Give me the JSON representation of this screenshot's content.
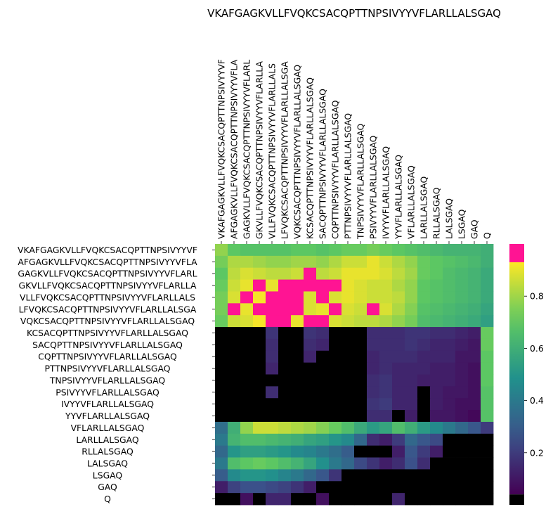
{
  "chart_data": {
    "type": "heatmap",
    "title": "VKAFGAGKVLLFVQKCSACQPTTNPSIVYYVFLARLLALSGAQ",
    "xlabel": "",
    "ylabel": "",
    "x_tick_labels": [
      "VKAFGAGKVLLFVQKCSACQPTTNPSIVYYVF",
      "AFGAGKVLLFVQKCSACQPTTNPSIVYYVFLA",
      "GAGKVLLFVQKCSACQPTTNPSIVYYVFLARL",
      "GKVLLFVQKCSACQPTTNPSIVYYVFLARLLA",
      "VLLFVQKCSACQPTTNPSIVYYVFLARLLALS",
      "LFVQKCSACQPTTNPSIVYYVFLARLLALSGA",
      "VQKCSACQPTTNPSIVYYVFLARLLALSGAQ",
      "KCSACQPTTNPSIVYYVFLARLLALSGAQ",
      "SACQPTTNPSIVYYVFLARLLALSGAQ",
      "CQPTTNPSIVYYVFLARLLALSGAQ",
      "PTTNPSIVYYVFLARLLALSGAQ",
      "TNPSIVYYVFLARLLALSGAQ",
      "PSIVYYVFLARLLALSGAQ",
      "IVYYVFLARLLALSGAQ",
      "YYVFLARLLALSGAQ",
      "VFLARLLALSGAQ",
      "LARLLALSGAQ",
      "RLLALSGAQ",
      "LALSGAQ",
      "LSGAQ",
      "GAQ",
      "Q"
    ],
    "y_tick_labels": [
      "VKAFGAGKVLLFVQKCSACQPTTNPSIVYYVF",
      "AFGAGKVLLFVQKCSACQPTTNPSIVYYVFLA",
      "GAGKVLLFVQKCSACQPTTNPSIVYYVFLARL",
      "GKVLLFVQKCSACQPTTNPSIVYYVFLARLLA",
      "VLLFVQKCSACQPTTNPSIVYYVFLARLLALS",
      "LFVQKCSACQPTTNPSIVYYVFLARLLALSGA",
      "VQKCSACQPTTNPSIVYYVFLARLLALSGAQ",
      "KCSACQPTTNPSIVYYVFLARLLALSGAQ",
      "SACQPTTNPSIVYYVFLARLLALSGAQ",
      "CQPTTNPSIVYYVFLARLLALSGAQ",
      "PTTNPSIVYYVFLARLLALSGAQ",
      "TNPSIVYYVFLARLLALSGAQ",
      "PSIVYYVFLARLLALSGAQ",
      "IVYYVFLARLLALSGAQ",
      "YYVFLARLLALSGAQ",
      "VFLARLLALSGAQ",
      "LARLLALSGAQ",
      "RLLALSGAQ",
      "LALSGAQ",
      "LSGAQ",
      "GAQ",
      "Q"
    ],
    "colorbar": {
      "ticks": [
        0.2,
        0.4,
        0.6,
        0.8
      ],
      "tick_labels": [
        "0.2",
        "0.4",
        "0.6",
        "0.8"
      ],
      "range": [
        0.0,
        1.0
      ],
      "low_color": "#000000",
      "high_color": "#ff1493",
      "colormap": "viridis"
    },
    "values": [
      [
        0.78,
        0.7,
        0.68,
        0.68,
        0.68,
        0.68,
        0.7,
        0.7,
        0.68,
        0.7,
        0.72,
        0.72,
        0.74,
        0.72,
        0.7,
        0.68,
        0.66,
        0.64,
        0.62,
        0.62,
        0.62,
        0.6
      ],
      [
        0.74,
        0.82,
        0.82,
        0.8,
        0.78,
        0.78,
        0.8,
        0.8,
        0.78,
        0.82,
        0.86,
        0.86,
        0.9,
        0.86,
        0.82,
        0.78,
        0.72,
        0.7,
        0.68,
        0.66,
        0.64,
        0.6
      ],
      [
        0.7,
        0.84,
        0.88,
        0.86,
        0.84,
        0.84,
        0.86,
        1.0,
        0.84,
        0.86,
        0.9,
        0.9,
        0.9,
        0.88,
        0.84,
        0.8,
        0.72,
        0.7,
        0.66,
        0.64,
        0.62,
        0.58
      ],
      [
        0.72,
        0.86,
        0.9,
        1.0,
        0.9,
        1.0,
        1.0,
        1.0,
        1.0,
        1.0,
        0.9,
        0.88,
        0.86,
        0.86,
        0.82,
        0.78,
        0.7,
        0.68,
        0.66,
        0.64,
        0.62,
        0.58
      ],
      [
        0.74,
        0.88,
        1.0,
        0.92,
        1.0,
        1.0,
        1.0,
        0.88,
        1.0,
        0.88,
        0.9,
        0.88,
        0.86,
        0.86,
        0.84,
        0.78,
        0.7,
        0.68,
        0.66,
        0.64,
        0.62,
        0.58
      ],
      [
        0.74,
        1.0,
        0.9,
        1.0,
        1.0,
        1.0,
        1.0,
        0.88,
        0.9,
        1.0,
        0.88,
        0.86,
        1.0,
        0.88,
        0.82,
        0.76,
        0.68,
        0.66,
        0.64,
        0.62,
        0.6,
        0.56
      ],
      [
        0.72,
        0.86,
        0.88,
        0.92,
        1.0,
        1.0,
        0.9,
        1.0,
        1.0,
        0.88,
        0.86,
        0.84,
        0.84,
        0.82,
        0.78,
        0.74,
        0.66,
        0.64,
        0.62,
        0.6,
        0.58,
        0.54
      ],
      [
        0.0,
        0.0,
        0.0,
        0.0,
        0.18,
        0.0,
        0.0,
        0.18,
        0.16,
        0.0,
        0.0,
        0.0,
        0.16,
        0.16,
        0.16,
        0.18,
        0.18,
        0.16,
        0.16,
        0.14,
        0.12,
        0.72
      ],
      [
        0.0,
        0.0,
        0.0,
        0.0,
        0.16,
        0.0,
        0.0,
        0.16,
        0.14,
        0.0,
        0.0,
        0.0,
        0.16,
        0.16,
        0.16,
        0.18,
        0.16,
        0.14,
        0.14,
        0.12,
        0.1,
        0.72
      ],
      [
        0.0,
        0.0,
        0.0,
        0.0,
        0.16,
        0.0,
        0.0,
        0.14,
        0.0,
        0.0,
        0.0,
        0.0,
        0.14,
        0.16,
        0.16,
        0.16,
        0.14,
        0.14,
        0.14,
        0.1,
        0.1,
        0.7
      ],
      [
        0.0,
        0.0,
        0.0,
        0.0,
        0.14,
        0.0,
        0.0,
        0.0,
        0.0,
        0.0,
        0.0,
        0.0,
        0.14,
        0.16,
        0.14,
        0.14,
        0.14,
        0.12,
        0.12,
        0.1,
        0.08,
        0.7
      ],
      [
        0.0,
        0.0,
        0.0,
        0.0,
        0.0,
        0.0,
        0.0,
        0.0,
        0.0,
        0.0,
        0.0,
        0.0,
        0.16,
        0.18,
        0.14,
        0.14,
        0.12,
        0.12,
        0.12,
        0.1,
        0.08,
        0.7
      ],
      [
        0.0,
        0.0,
        0.0,
        0.0,
        0.16,
        0.0,
        0.0,
        0.0,
        0.0,
        0.0,
        0.0,
        0.0,
        0.16,
        0.18,
        0.14,
        0.14,
        0.0,
        0.12,
        0.1,
        0.1,
        0.08,
        0.68
      ],
      [
        0.0,
        0.0,
        0.0,
        0.0,
        0.0,
        0.0,
        0.0,
        0.0,
        0.0,
        0.0,
        0.0,
        0.0,
        0.18,
        0.2,
        0.14,
        0.14,
        0.0,
        0.12,
        0.1,
        0.08,
        0.08,
        0.68
      ],
      [
        0.0,
        0.0,
        0.0,
        0.0,
        0.0,
        0.0,
        0.0,
        0.0,
        0.0,
        0.0,
        0.0,
        0.0,
        0.16,
        0.16,
        0.0,
        0.12,
        0.0,
        0.1,
        0.1,
        0.08,
        0.06,
        0.68
      ],
      [
        0.36,
        0.6,
        0.78,
        0.86,
        0.86,
        0.84,
        0.82,
        0.8,
        0.76,
        0.72,
        0.66,
        0.58,
        0.52,
        0.56,
        0.66,
        0.6,
        0.52,
        0.46,
        0.4,
        0.34,
        0.28,
        0.2
      ],
      [
        0.4,
        0.62,
        0.66,
        0.66,
        0.64,
        0.62,
        0.6,
        0.56,
        0.54,
        0.5,
        0.46,
        0.34,
        0.16,
        0.12,
        0.2,
        0.34,
        0.28,
        0.24,
        0.0,
        0.0,
        0.0,
        0.0
      ],
      [
        0.34,
        0.5,
        0.54,
        0.54,
        0.52,
        0.5,
        0.46,
        0.44,
        0.4,
        0.36,
        0.3,
        0.0,
        0.0,
        0.0,
        0.12,
        0.28,
        0.2,
        0.12,
        0.0,
        0.0,
        0.0,
        0.0
      ],
      [
        0.4,
        0.66,
        0.7,
        0.72,
        0.7,
        0.66,
        0.62,
        0.56,
        0.48,
        0.4,
        0.34,
        0.24,
        0.18,
        0.12,
        0.16,
        0.26,
        0.16,
        0.0,
        0.0,
        0.0,
        0.0,
        0.0
      ],
      [
        0.3,
        0.46,
        0.5,
        0.5,
        0.48,
        0.44,
        0.4,
        0.34,
        0.28,
        0.18,
        0.0,
        0.0,
        0.0,
        0.0,
        0.0,
        0.0,
        0.0,
        0.0,
        0.0,
        0.0,
        0.0,
        0.0
      ],
      [
        0.12,
        0.22,
        0.26,
        0.26,
        0.24,
        0.22,
        0.18,
        0.12,
        0.0,
        0.0,
        0.0,
        0.0,
        0.0,
        0.0,
        0.0,
        0.0,
        0.0,
        0.0,
        0.0,
        0.0,
        0.0,
        0.0
      ],
      [
        0.0,
        0.0,
        0.08,
        0.0,
        0.14,
        0.14,
        0.0,
        0.0,
        0.08,
        0.0,
        0.0,
        0.0,
        0.0,
        0.0,
        0.14,
        0.0,
        0.0,
        0.0,
        0.0,
        0.0,
        0.0,
        0.0
      ]
    ]
  }
}
